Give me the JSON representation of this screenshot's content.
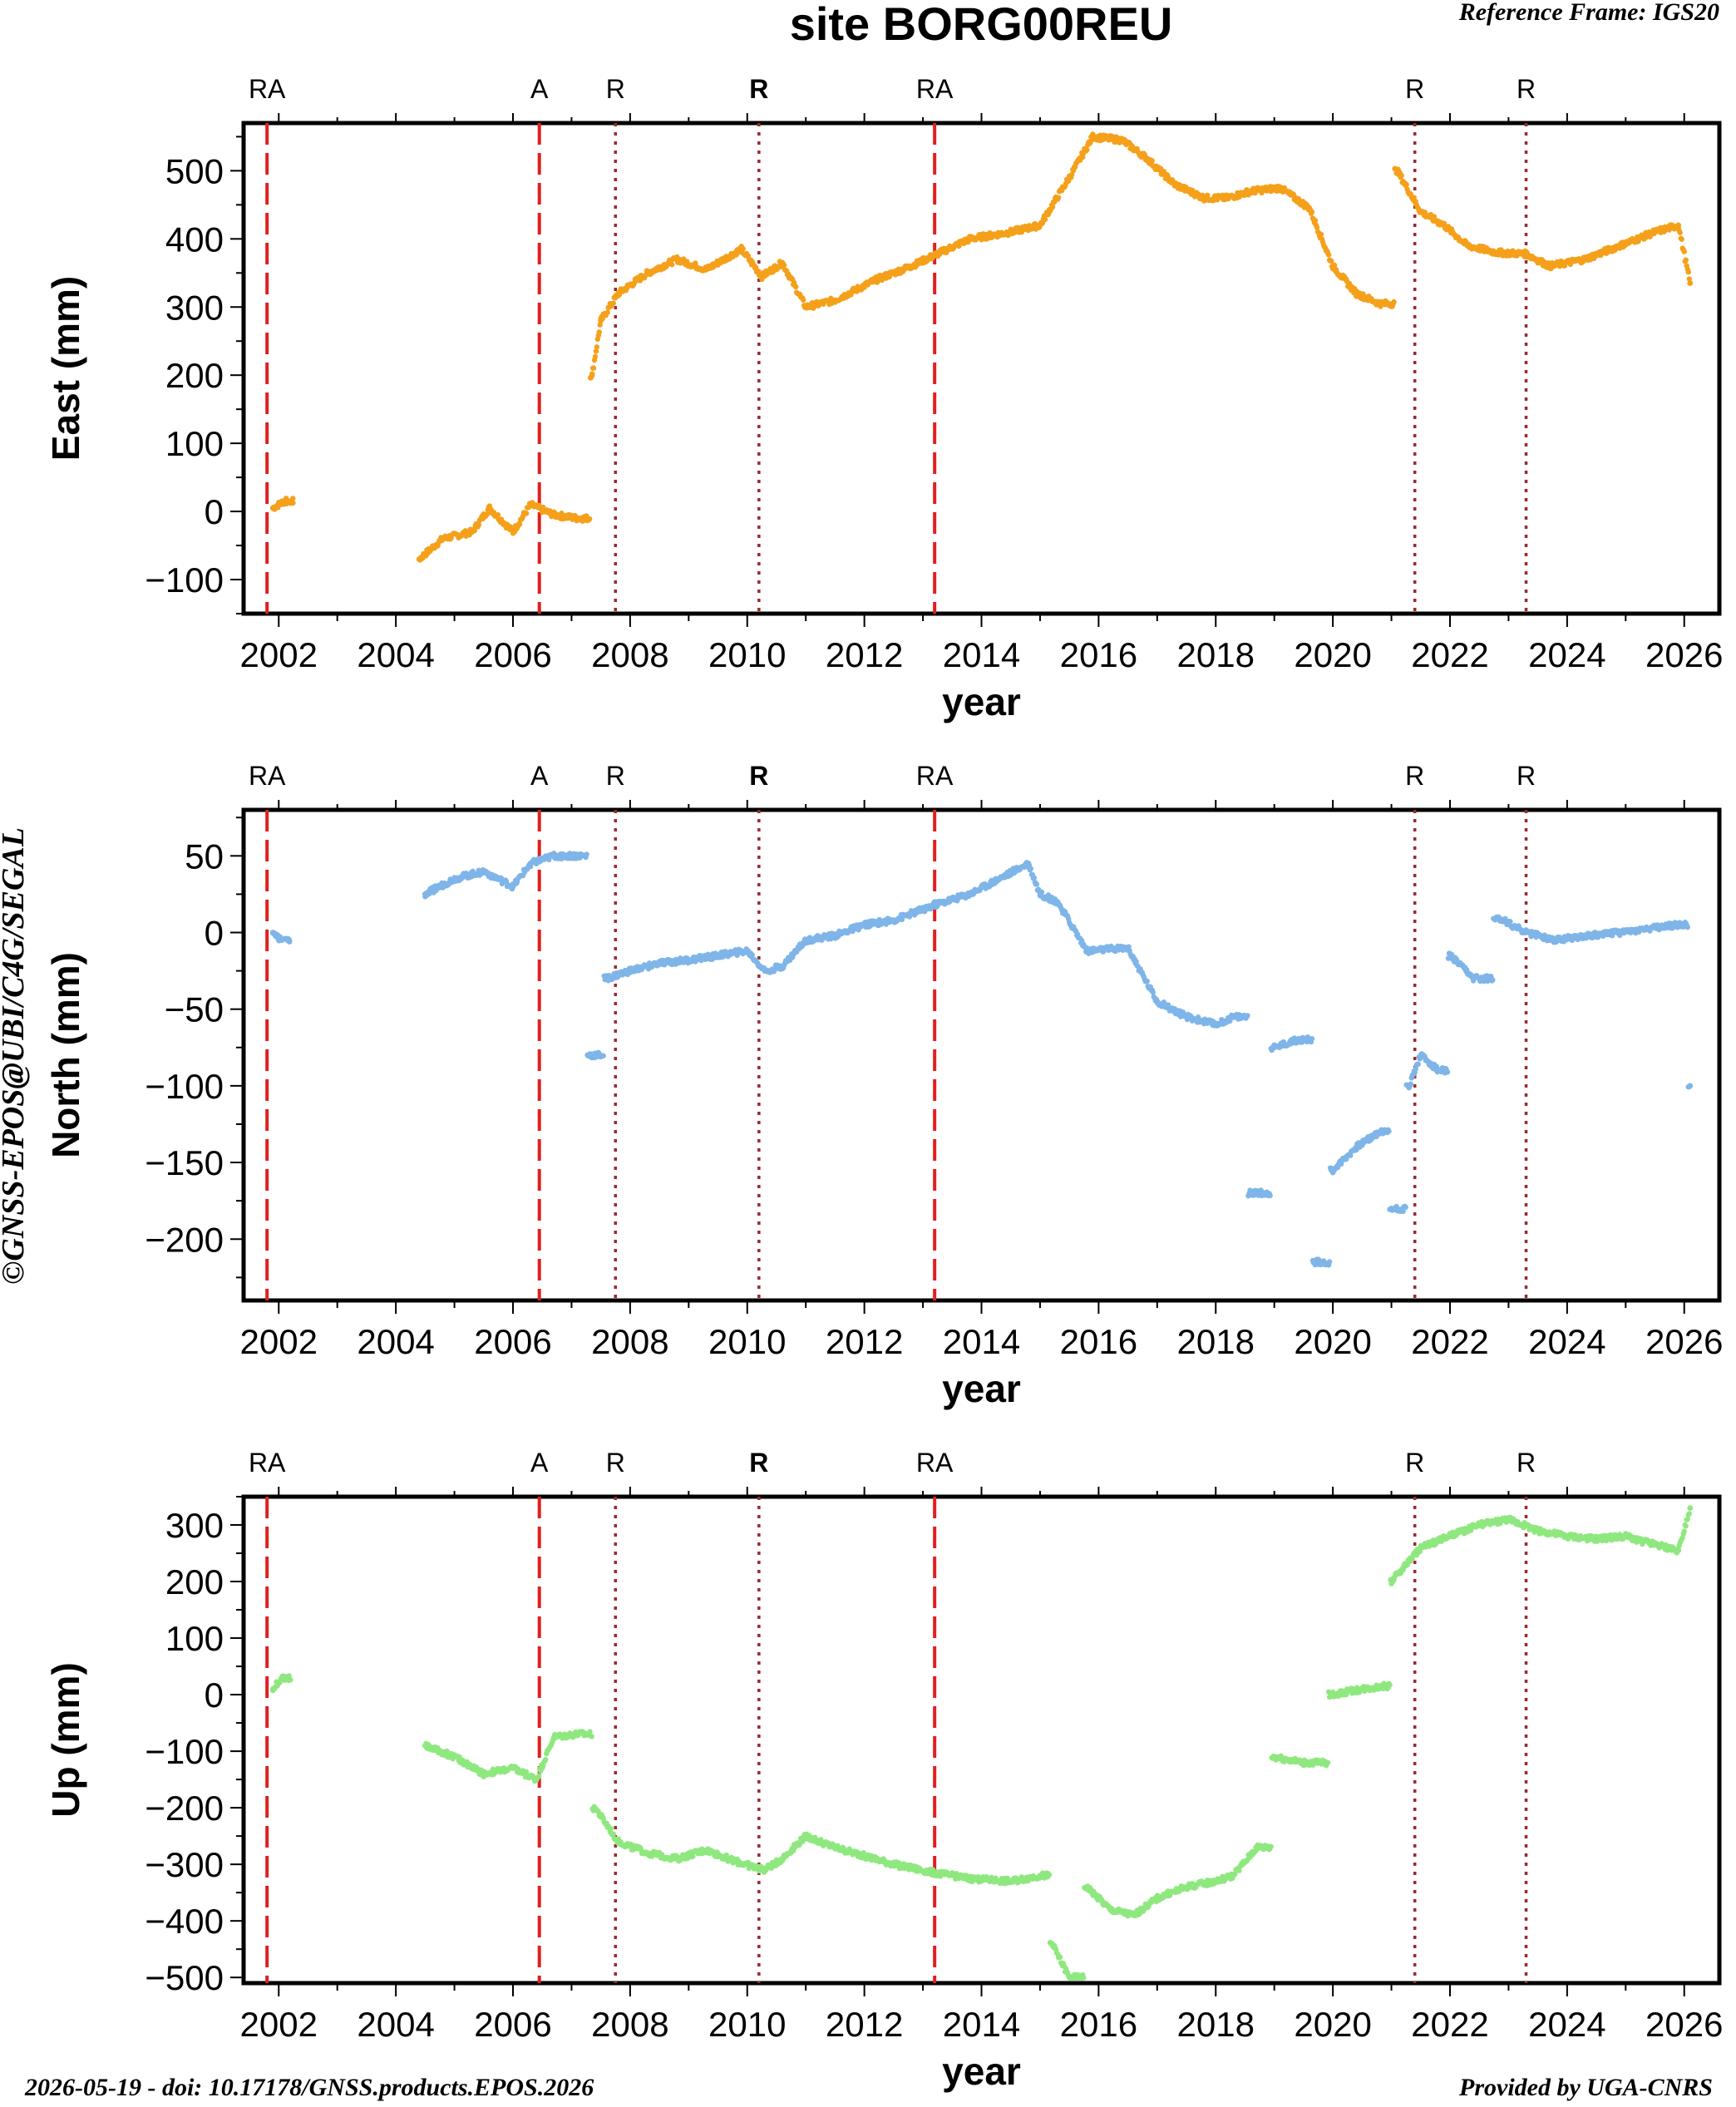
{
  "title": "site BORG00REU",
  "reference_frame": "Reference Frame: IGS20",
  "watermark": "©GNSS-EPOS@UBI/C4G/SEGAL",
  "footer_left": "2026-05-19 - doi: 10.17178/GNSS.products.EPOS.2026",
  "footer_right": "Provided by UGA-CNRS",
  "colors": {
    "east": "#f5a01a",
    "north": "#7fb5e8",
    "up": "#8fe87f",
    "antenna_line": "#e02020",
    "receiver_line": "#9b2a2a"
  },
  "events": [
    {
      "label": "RA",
      "year": 2001.8,
      "style": "dash"
    },
    {
      "label": "A",
      "year": 2006.45,
      "style": "dash"
    },
    {
      "label": "R",
      "year": 2007.75,
      "style": "dot"
    },
    {
      "label": "R",
      "year": 2010.2,
      "style": "dot",
      "bold": true
    },
    {
      "label": "RA",
      "year": 2013.2,
      "style": "dash"
    },
    {
      "label": "R",
      "year": 2021.4,
      "style": "dot"
    },
    {
      "label": "R",
      "year": 2023.3,
      "style": "dot"
    }
  ],
  "chart_data": [
    {
      "type": "scatter",
      "name": "East",
      "xlabel": "year",
      "ylabel": "East (mm)",
      "xlim": [
        2001.4,
        2026.6
      ],
      "ylim": [
        -150,
        570
      ],
      "xticks": [
        2002,
        2004,
        2006,
        2008,
        2010,
        2012,
        2014,
        2016,
        2018,
        2020,
        2022,
        2024,
        2026
      ],
      "yticks": [
        -100,
        0,
        100,
        200,
        300,
        400,
        500
      ],
      "x": [
        2001.9,
        2002.1,
        2004.4,
        2004.8,
        2005.3,
        2005.6,
        2006.0,
        2006.3,
        2006.7,
        2007.1,
        2007.35,
        2007.5,
        2007.8,
        2008.3,
        2008.8,
        2009.3,
        2009.9,
        2010.25,
        2010.6,
        2011.0,
        2011.5,
        2012.2,
        2012.8,
        2013.3,
        2013.8,
        2014.5,
        2015.0,
        2015.5,
        2015.9,
        2016.4,
        2016.8,
        2017.3,
        2017.8,
        2018.2,
        2018.6,
        2019.1,
        2019.6,
        2020.0,
        2020.4,
        2020.8,
        2021.1,
        2021.5,
        2021.9,
        2022.3,
        2022.8,
        2023.3,
        2023.7,
        2024.3,
        2024.9,
        2025.5,
        2025.9,
        2026.1
      ],
      "y": [
        5,
        15,
        -70,
        -40,
        -30,
        5,
        -30,
        10,
        -5,
        -10,
        200,
        280,
        320,
        350,
        370,
        355,
        385,
        345,
        365,
        300,
        310,
        340,
        360,
        380,
        400,
        410,
        420,
        490,
        550,
        545,
        520,
        480,
        460,
        460,
        470,
        475,
        445,
        360,
        320,
        305,
        500,
        440,
        420,
        390,
        380,
        378,
        360,
        370,
        390,
        410,
        420,
        335
      ]
    },
    {
      "type": "scatter",
      "name": "North",
      "xlabel": "year",
      "ylabel": "North (mm)",
      "xlim": [
        2001.4,
        2026.6
      ],
      "ylim": [
        -240,
        80
      ],
      "xticks": [
        2002,
        2004,
        2006,
        2008,
        2010,
        2012,
        2014,
        2016,
        2018,
        2020,
        2022,
        2024,
        2026
      ],
      "yticks": [
        -200,
        -150,
        -100,
        -50,
        0,
        50
      ],
      "x": [
        2001.9,
        2002.05,
        2004.5,
        2005.0,
        2005.5,
        2006.0,
        2006.3,
        2006.7,
        2007.1,
        2007.3,
        2007.6,
        2008.0,
        2008.5,
        2009.0,
        2009.5,
        2010.0,
        2010.3,
        2010.6,
        2011.0,
        2011.5,
        2012.0,
        2012.5,
        2013.2,
        2013.8,
        2014.3,
        2014.8,
        2015.0,
        2015.3,
        2015.8,
        2016.5,
        2017.0,
        2017.5,
        2018.0,
        2018.3,
        2018.6,
        2019.0,
        2019.4,
        2019.7,
        2020.0,
        2020.4,
        2020.8,
        2021.0,
        2021.3,
        2021.5,
        2021.8,
        2022.0,
        2022.4,
        2022.8,
        2023.3,
        2023.8,
        2024.3,
        2024.9,
        2025.5,
        2025.9,
        2026.1
      ],
      "y": [
        0,
        -5,
        25,
        35,
        40,
        30,
        45,
        50,
        50,
        -80,
        -30,
        -25,
        -20,
        -18,
        -15,
        -12,
        -25,
        -22,
        -5,
        -2,
        5,
        8,
        18,
        25,
        35,
        45,
        25,
        20,
        -12,
        -10,
        -45,
        -55,
        -60,
        -55,
        -170,
        -75,
        -70,
        -215,
        -155,
        -140,
        -130,
        -180,
        -100,
        -80,
        -90,
        -15,
        -30,
        10,
        0,
        -5,
        -2,
        0,
        3,
        5,
        -100
      ]
    },
    {
      "type": "scatter",
      "name": "Up",
      "xlabel": "year",
      "ylabel": "Up (mm)",
      "xlim": [
        2001.4,
        2026.6
      ],
      "ylim": [
        -510,
        350
      ],
      "xticks": [
        2002,
        2004,
        2006,
        2008,
        2010,
        2012,
        2014,
        2016,
        2018,
        2020,
        2022,
        2024,
        2026
      ],
      "yticks": [
        -500,
        -400,
        -300,
        -200,
        -100,
        0,
        100,
        200,
        300
      ],
      "x": [
        2001.9,
        2002.05,
        2004.5,
        2005.0,
        2005.5,
        2006.0,
        2006.4,
        2006.7,
        2007.1,
        2007.4,
        2007.8,
        2008.3,
        2008.8,
        2009.3,
        2009.8,
        2010.3,
        2010.6,
        2011.0,
        2011.5,
        2012.0,
        2012.5,
        2013.2,
        2013.8,
        2014.5,
        2015.0,
        2015.2,
        2015.5,
        2015.8,
        2016.2,
        2016.6,
        2017.0,
        2017.5,
        2018.0,
        2018.3,
        2018.7,
        2019.0,
        2019.5,
        2020.0,
        2020.5,
        2020.9,
        2021.0,
        2021.5,
        2022.0,
        2022.5,
        2023.0,
        2023.5,
        2024.0,
        2024.5,
        2025.0,
        2025.5,
        2025.9,
        2026.1
      ],
      "y": [
        10,
        30,
        -90,
        -110,
        -140,
        -130,
        -150,
        -75,
        -70,
        -200,
        -260,
        -280,
        -290,
        -275,
        -295,
        -310,
        -290,
        -250,
        -270,
        -285,
        -300,
        -315,
        -325,
        -330,
        -320,
        -440,
        -500,
        -340,
        -380,
        -390,
        -360,
        -340,
        -330,
        -320,
        -270,
        -110,
        -120,
        0,
        10,
        15,
        200,
        260,
        280,
        300,
        310,
        290,
        280,
        275,
        280,
        265,
        255,
        330
      ]
    }
  ]
}
